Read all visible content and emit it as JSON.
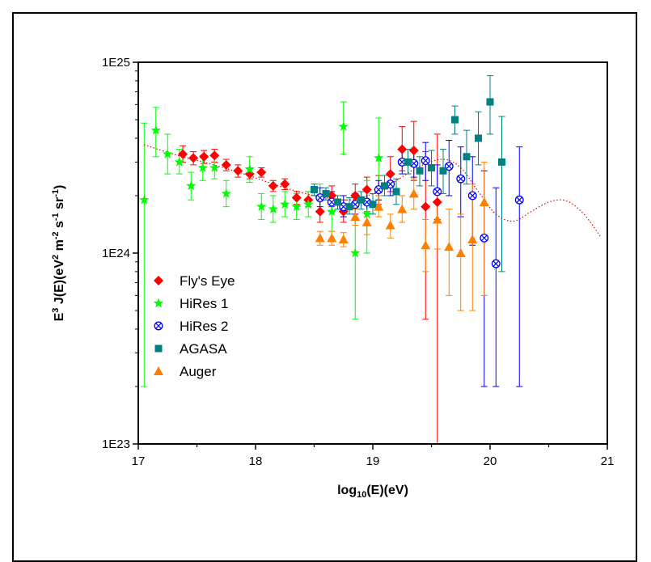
{
  "chart_data": {
    "type": "scatter",
    "xlabel": "log10(E)(eV)",
    "ylabel": "E3 J(E)(eV2 m-2 s-1 sr-1)",
    "xlim": [
      17,
      21
    ],
    "ylim": [
      1e+23,
      1e+25
    ],
    "yscale": "log",
    "x_ticks": [
      17,
      18,
      19,
      20,
      21
    ],
    "x_tick_labels": [
      "17",
      "18",
      "19",
      "20",
      "21"
    ],
    "y_ticks": [
      1e+23,
      1e+24,
      1e+25
    ],
    "y_tick_labels": [
      "1E23",
      "1E24",
      "1E25"
    ],
    "legend_position": "left",
    "series": [
      {
        "name": "Fly's Eye",
        "marker": "diamond",
        "color": "#ff0000",
        "points": [
          {
            "x": 17.38,
            "y": 3.3e+24,
            "lo": 3e+24,
            "hi": 3.65e+24
          },
          {
            "x": 17.47,
            "y": 3.15e+24,
            "lo": 2.9e+24,
            "hi": 3.4e+24
          },
          {
            "x": 17.56,
            "y": 3.2e+24,
            "lo": 2.95e+24,
            "hi": 3.45e+24
          },
          {
            "x": 17.65,
            "y": 3.25e+24,
            "lo": 3e+24,
            "hi": 3.5e+24
          },
          {
            "x": 17.75,
            "y": 2.9e+24,
            "lo": 2.7e+24,
            "hi": 3.1e+24
          },
          {
            "x": 17.85,
            "y": 2.7e+24,
            "lo": 2.5e+24,
            "hi": 2.9e+24
          },
          {
            "x": 17.95,
            "y": 2.6e+24,
            "lo": 2.45e+24,
            "hi": 2.8e+24
          },
          {
            "x": 18.05,
            "y": 2.65e+24,
            "lo": 2.5e+24,
            "hi": 2.8e+24
          },
          {
            "x": 18.15,
            "y": 2.25e+24,
            "lo": 2.1e+24,
            "hi": 2.4e+24
          },
          {
            "x": 18.25,
            "y": 2.3e+24,
            "lo": 2.15e+24,
            "hi": 2.45e+24
          },
          {
            "x": 18.35,
            "y": 1.95e+24,
            "lo": 1.8e+24,
            "hi": 2.1e+24
          },
          {
            "x": 18.45,
            "y": 1.9e+24,
            "lo": 1.75e+24,
            "hi": 2.1e+24
          },
          {
            "x": 18.55,
            "y": 1.65e+24,
            "lo": 1.45e+24,
            "hi": 1.9e+24
          },
          {
            "x": 18.65,
            "y": 2e+24,
            "lo": 1.75e+24,
            "hi": 2.25e+24
          },
          {
            "x": 18.75,
            "y": 1.65e+24,
            "lo": 1.45e+24,
            "hi": 1.9e+24
          },
          {
            "x": 18.85,
            "y": 2e+24,
            "lo": 1.75e+24,
            "hi": 2.3e+24
          },
          {
            "x": 18.95,
            "y": 2.15e+24,
            "lo": 1.85e+24,
            "hi": 2.5e+24
          },
          {
            "x": 19.05,
            "y": 2.15e+24,
            "lo": 1.8e+24,
            "hi": 2.55e+24
          },
          {
            "x": 19.15,
            "y": 2.6e+24,
            "lo": 2.1e+24,
            "hi": 3.2e+24
          },
          {
            "x": 19.25,
            "y": 3.5e+24,
            "lo": 2.7e+24,
            "hi": 4.6e+24
          },
          {
            "x": 19.35,
            "y": 3.45e+24,
            "lo": 2.4e+24,
            "hi": 4.9e+24
          },
          {
            "x": 19.45,
            "y": 1.75e+24,
            "lo": 4.5e+23,
            "hi": 3.4e+24
          },
          {
            "x": 19.55,
            "y": 1.85e+24,
            "lo": 1e+23,
            "hi": 4.2e+24
          }
        ]
      },
      {
        "name": "HiRes 1",
        "marker": "star",
        "color": "#00ff00",
        "points": [
          {
            "x": 17.05,
            "y": 1.9e+24,
            "lo": 2e+23,
            "hi": 4.8e+24
          },
          {
            "x": 17.15,
            "y": 4.4e+24,
            "lo": 3.2e+24,
            "hi": 5.8e+24
          },
          {
            "x": 17.25,
            "y": 3.3e+24,
            "lo": 2.6e+24,
            "hi": 4.2e+24
          },
          {
            "x": 17.35,
            "y": 3e+24,
            "lo": 2.6e+24,
            "hi": 3.5e+24
          },
          {
            "x": 17.45,
            "y": 2.25e+24,
            "lo": 1.9e+24,
            "hi": 2.65e+24
          },
          {
            "x": 17.55,
            "y": 2.8e+24,
            "lo": 2.4e+24,
            "hi": 3.25e+24
          },
          {
            "x": 17.65,
            "y": 2.8e+24,
            "lo": 2.45e+24,
            "hi": 3.2e+24
          },
          {
            "x": 17.75,
            "y": 2.05e+24,
            "lo": 1.75e+24,
            "hi": 2.4e+24
          },
          {
            "x": 17.95,
            "y": 2.75e+24,
            "lo": 2.35e+24,
            "hi": 3.2e+24
          },
          {
            "x": 18.05,
            "y": 1.75e+24,
            "lo": 1.5e+24,
            "hi": 2.05e+24
          },
          {
            "x": 18.15,
            "y": 1.7e+24,
            "lo": 1.45e+24,
            "hi": 2e+24
          },
          {
            "x": 18.25,
            "y": 1.8e+24,
            "lo": 1.55e+24,
            "hi": 2.1e+24
          },
          {
            "x": 18.35,
            "y": 1.75e+24,
            "lo": 1.5e+24,
            "hi": 2.05e+24
          },
          {
            "x": 18.45,
            "y": 1.8e+24,
            "lo": 1.55e+24,
            "hi": 2.1e+24
          },
          {
            "x": 18.55,
            "y": 1.95e+24,
            "lo": 1.65e+24,
            "hi": 2.3e+24
          },
          {
            "x": 18.65,
            "y": 1.65e+24,
            "lo": 1.3e+24,
            "hi": 2.05e+24
          },
          {
            "x": 18.75,
            "y": 4.6e+24,
            "lo": 3.3e+24,
            "hi": 6.2e+24
          },
          {
            "x": 18.85,
            "y": 1e+24,
            "lo": 4.5e+23,
            "hi": 1.8e+24
          },
          {
            "x": 18.95,
            "y": 1.6e+24,
            "lo": 1e+24,
            "hi": 2.4e+24
          },
          {
            "x": 19.05,
            "y": 3.15e+24,
            "lo": 1.9e+24,
            "hi": 5.1e+24
          }
        ]
      },
      {
        "name": "HiRes 2",
        "marker": "circle-x",
        "color": "#0000ff",
        "points": [
          {
            "x": 18.55,
            "y": 1.95e+24,
            "lo": 1.75e+24,
            "hi": 2.2e+24
          },
          {
            "x": 18.65,
            "y": 1.85e+24,
            "lo": 1.65e+24,
            "hi": 2.1e+24
          },
          {
            "x": 18.75,
            "y": 1.75e+24,
            "lo": 1.55e+24,
            "hi": 2e+24
          },
          {
            "x": 18.85,
            "y": 1.8e+24,
            "lo": 1.6e+24,
            "hi": 2.05e+24
          },
          {
            "x": 18.95,
            "y": 1.85e+24,
            "lo": 1.65e+24,
            "hi": 2.1e+24
          },
          {
            "x": 19.05,
            "y": 2.15e+24,
            "lo": 1.9e+24,
            "hi": 2.4e+24
          },
          {
            "x": 19.15,
            "y": 2.3e+24,
            "lo": 2e+24,
            "hi": 2.6e+24
          },
          {
            "x": 19.25,
            "y": 3e+24,
            "lo": 2.6e+24,
            "hi": 3.45e+24
          },
          {
            "x": 19.35,
            "y": 2.95e+24,
            "lo": 2.5e+24,
            "hi": 3.5e+24
          },
          {
            "x": 19.45,
            "y": 3.05e+24,
            "lo": 2.4e+24,
            "hi": 3.8e+24
          },
          {
            "x": 19.55,
            "y": 2.1e+24,
            "lo": 1.5e+24,
            "hi": 2.9e+24
          },
          {
            "x": 19.65,
            "y": 2.85e+24,
            "lo": 2e+24,
            "hi": 3.9e+24
          },
          {
            "x": 19.75,
            "y": 2.45e+24,
            "lo": 1.55e+24,
            "hi": 3.6e+24
          },
          {
            "x": 19.85,
            "y": 2e+24,
            "lo": 1.1e+24,
            "hi": 3.2e+24
          },
          {
            "x": 19.95,
            "y": 1.2e+24,
            "lo": 2e+23,
            "hi": 2.7e+24
          },
          {
            "x": 20.05,
            "y": 8.8e+23,
            "lo": 2e+23,
            "hi": 2.2e+24
          },
          {
            "x": 20.25,
            "y": 1.9e+24,
            "lo": 2e+23,
            "hi": 3.6e+24
          }
        ]
      },
      {
        "name": "AGASA",
        "marker": "square",
        "color": "#008080",
        "points": [
          {
            "x": 18.5,
            "y": 2.15e+24,
            "lo": 2e+24,
            "hi": 2.3e+24
          },
          {
            "x": 18.6,
            "y": 2.05e+24,
            "lo": 1.9e+24,
            "hi": 2.2e+24
          },
          {
            "x": 18.7,
            "y": 1.85e+24,
            "lo": 1.7e+24,
            "hi": 2e+24
          },
          {
            "x": 18.8,
            "y": 1.75e+24,
            "lo": 1.6e+24,
            "hi": 1.95e+24
          },
          {
            "x": 18.9,
            "y": 1.9e+24,
            "lo": 1.7e+24,
            "hi": 2.1e+24
          },
          {
            "x": 19.0,
            "y": 1.8e+24,
            "lo": 1.6e+24,
            "hi": 2.05e+24
          },
          {
            "x": 19.1,
            "y": 2.25e+24,
            "lo": 2e+24,
            "hi": 2.55e+24
          },
          {
            "x": 19.2,
            "y": 2.1e+24,
            "lo": 1.8e+24,
            "hi": 2.45e+24
          },
          {
            "x": 19.3,
            "y": 3e+24,
            "lo": 2.6e+24,
            "hi": 3.5e+24
          },
          {
            "x": 19.4,
            "y": 2.7e+24,
            "lo": 2.25e+24,
            "hi": 3.2e+24
          },
          {
            "x": 19.5,
            "y": 2.8e+24,
            "lo": 2.25e+24,
            "hi": 3.45e+24
          },
          {
            "x": 19.6,
            "y": 2.7e+24,
            "lo": 2.05e+24,
            "hi": 3.5e+24
          },
          {
            "x": 19.7,
            "y": 5e+24,
            "lo": 4.2e+24,
            "hi": 5.9e+24
          },
          {
            "x": 19.8,
            "y": 3.2e+24,
            "lo": 2.3e+24,
            "hi": 4.4e+24
          },
          {
            "x": 19.9,
            "y": 4e+24,
            "lo": 2.9e+24,
            "hi": 5.5e+24
          },
          {
            "x": 20.0,
            "y": 6.2e+24,
            "lo": 4.2e+24,
            "hi": 8.5e+24
          },
          {
            "x": 20.1,
            "y": 3e+24,
            "lo": 8e+23,
            "hi": 5.2e+24
          }
        ]
      },
      {
        "name": "Auger",
        "marker": "triangle",
        "color": "#ff8000",
        "points": [
          {
            "x": 18.55,
            "y": 1.2e+24,
            "lo": 1.1e+24,
            "hi": 1.3e+24
          },
          {
            "x": 18.65,
            "y": 1.2e+24,
            "lo": 1.1e+24,
            "hi": 1.3e+24
          },
          {
            "x": 18.75,
            "y": 1.18e+24,
            "lo": 1.08e+24,
            "hi": 1.28e+24
          },
          {
            "x": 18.85,
            "y": 1.55e+24,
            "lo": 1.4e+24,
            "hi": 1.7e+24
          },
          {
            "x": 18.95,
            "y": 1.45e+24,
            "lo": 1.25e+24,
            "hi": 1.65e+24
          },
          {
            "x": 19.05,
            "y": 1.75e+24,
            "lo": 1.55e+24,
            "hi": 2e+24
          },
          {
            "x": 19.15,
            "y": 1.4e+24,
            "lo": 1.2e+24,
            "hi": 1.6e+24
          },
          {
            "x": 19.25,
            "y": 1.7e+24,
            "lo": 1.45e+24,
            "hi": 2e+24
          },
          {
            "x": 19.35,
            "y": 2.05e+24,
            "lo": 1.7e+24,
            "hi": 2.45e+24
          },
          {
            "x": 19.45,
            "y": 1.1e+24,
            "lo": 8e+23,
            "hi": 1.5e+24
          },
          {
            "x": 19.55,
            "y": 1.5e+24,
            "lo": 1.05e+24,
            "hi": 2.1e+24
          },
          {
            "x": 19.65,
            "y": 1.08e+24,
            "lo": 6e+23,
            "hi": 1.7e+24
          },
          {
            "x": 19.75,
            "y": 1e+24,
            "lo": 5e+23,
            "hi": 1.6e+24
          },
          {
            "x": 19.85,
            "y": 1.18e+24,
            "lo": 5e+23,
            "hi": 2.3e+24
          },
          {
            "x": 19.95,
            "y": 1.85e+24,
            "lo": 6e+23,
            "hi": 3e+24
          }
        ]
      }
    ],
    "model_curve": {
      "style": "dotted",
      "color": "#e00000",
      "x": [
        17.05,
        17.3,
        17.6,
        17.9,
        18.2,
        18.5,
        18.8,
        19.0,
        19.2,
        19.4,
        19.6,
        19.75,
        19.9,
        20.05,
        20.2,
        20.35,
        20.5,
        20.65,
        20.8,
        20.95
      ],
      "y": [
        3.7e+24,
        3.3e+24,
        2.95e+24,
        2.6e+24,
        2.25e+24,
        2e+24,
        1.9e+24,
        2.05e+24,
        2.4e+24,
        2.85e+24,
        3.1e+24,
        2.8e+24,
        2.1e+24,
        1.6e+24,
        1.47e+24,
        1.65e+24,
        1.85e+24,
        1.88e+24,
        1.6e+24,
        1.2e+24
      ]
    }
  }
}
